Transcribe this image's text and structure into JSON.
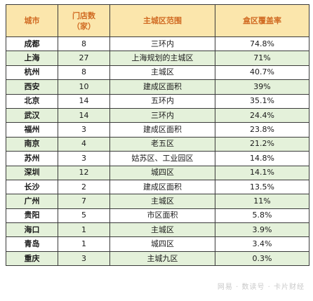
{
  "table": {
    "headers": {
      "city": "城市",
      "stores_line1": "门店数",
      "stores_line2": "（家）",
      "scope": "主城区范围",
      "coverage": "盒区覆盖率"
    },
    "rows": [
      {
        "city": "成都",
        "stores": "8",
        "scope": "三环内",
        "coverage": "74.8%"
      },
      {
        "city": "上海",
        "stores": "27",
        "scope": "上海规划的主城区",
        "coverage": "71%"
      },
      {
        "city": "杭州",
        "stores": "8",
        "scope": "主城区",
        "coverage": "40.7%"
      },
      {
        "city": "西安",
        "stores": "10",
        "scope": "建成区面积",
        "coverage": "39%"
      },
      {
        "city": "北京",
        "stores": "14",
        "scope": "五环内",
        "coverage": "35.1%"
      },
      {
        "city": "武汉",
        "stores": "14",
        "scope": "三环内",
        "coverage": "24.4%"
      },
      {
        "city": "福州",
        "stores": "3",
        "scope": "建成区面积",
        "coverage": "23.8%"
      },
      {
        "city": "南京",
        "stores": "4",
        "scope": "老五区",
        "coverage": "21.2%"
      },
      {
        "city": "苏州",
        "stores": "3",
        "scope": "姑苏区、工业园区",
        "coverage": "14.8%"
      },
      {
        "city": "深圳",
        "stores": "12",
        "scope": "城四区",
        "coverage": "14.1%"
      },
      {
        "city": "长沙",
        "stores": "2",
        "scope": "建成区面积",
        "coverage": "13.5%"
      },
      {
        "city": "广州",
        "stores": "7",
        "scope": "主城区",
        "coverage": "11%"
      },
      {
        "city": "贵阳",
        "stores": "5",
        "scope": "市区面积",
        "coverage": "5.8%"
      },
      {
        "city": "海口",
        "stores": "1",
        "scope": "主城区",
        "coverage": "3.9%"
      },
      {
        "city": "青岛",
        "stores": "1",
        "scope": "城四区",
        "coverage": "3.4%"
      },
      {
        "city": "重庆",
        "stores": "3",
        "scope": "主城九区",
        "coverage": "0.3%"
      }
    ]
  },
  "watermark": "网易 · 数读号 · 卡片财经",
  "colors": {
    "header_bg": "#fbe6ac",
    "header_text": "#d06a22",
    "alt_row_bg": "#e4f1da",
    "border": "#3a3a3a"
  }
}
